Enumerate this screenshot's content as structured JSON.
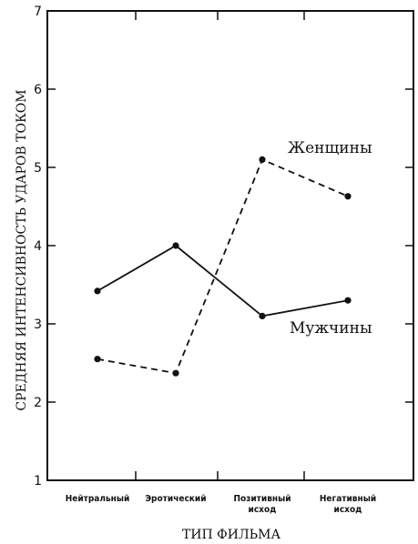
{
  "chart_data": {
    "type": "line",
    "categories": [
      [
        "Нейтральный"
      ],
      [
        "Эротический"
      ],
      [
        "Позитивный",
        "исход"
      ],
      [
        "Негативный",
        "исход"
      ]
    ],
    "xlabel": "ТИП ФИЛЬМА",
    "ylabel": "СРЕДНЯЯ ИНТЕНСИВНОСТЬ УДАРОВ ТОКОМ",
    "ylim": [
      1,
      7
    ],
    "yticks": [
      "1",
      "2",
      "3",
      "4",
      "5",
      "6",
      "7"
    ],
    "series": [
      {
        "name": "Мужчины",
        "values": [
          3.42,
          4.0,
          3.1,
          3.3
        ],
        "style": "solid",
        "color": "#111111"
      },
      {
        "name": "Женщины",
        "values": [
          2.55,
          2.37,
          5.1,
          4.63
        ],
        "style": "dashed",
        "color": "#111111"
      }
    ],
    "grid": false
  }
}
